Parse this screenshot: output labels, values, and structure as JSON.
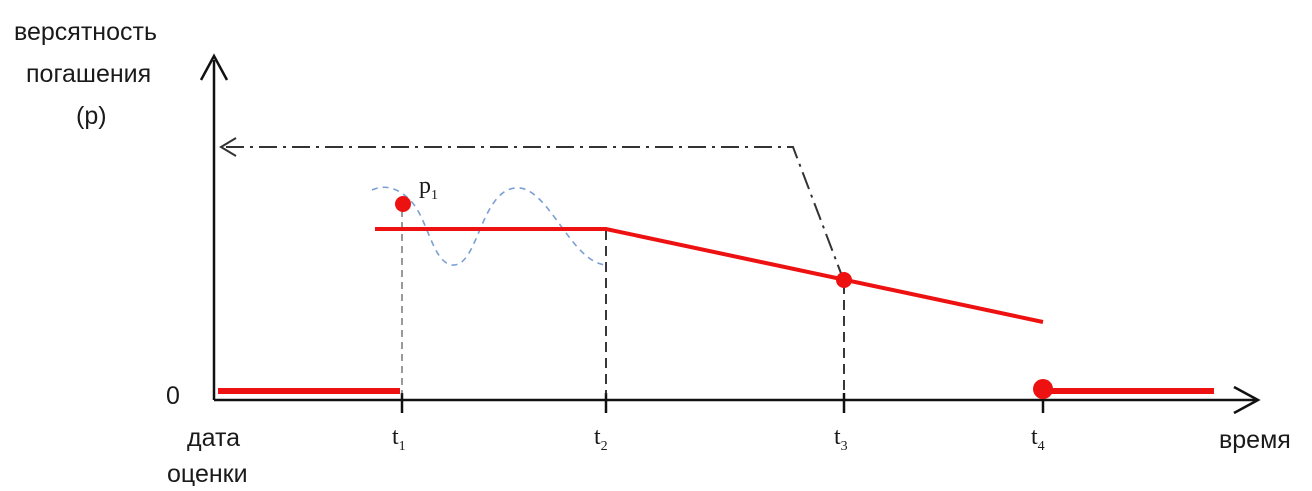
{
  "y_axis": {
    "label_lines": [
      "версятность",
      "погашения",
      "(р)"
    ],
    "zero_label": "0"
  },
  "x_axis": {
    "label": "время",
    "origin_label_lines": [
      "дата",
      "оценки"
    ],
    "ticks": [
      {
        "base": "t",
        "sub": "1"
      },
      {
        "base": "t",
        "sub": "2"
      },
      {
        "base": "t",
        "sub": "3"
      },
      {
        "base": "t",
        "sub": "4"
      }
    ]
  },
  "point_label": {
    "base": "p",
    "sub": "1"
  },
  "colors": {
    "axis": "#111111",
    "main_line": "#ee1111",
    "dash_dot_line": "#333333",
    "wave": "#7b9fd4",
    "guide": "#222222"
  }
}
